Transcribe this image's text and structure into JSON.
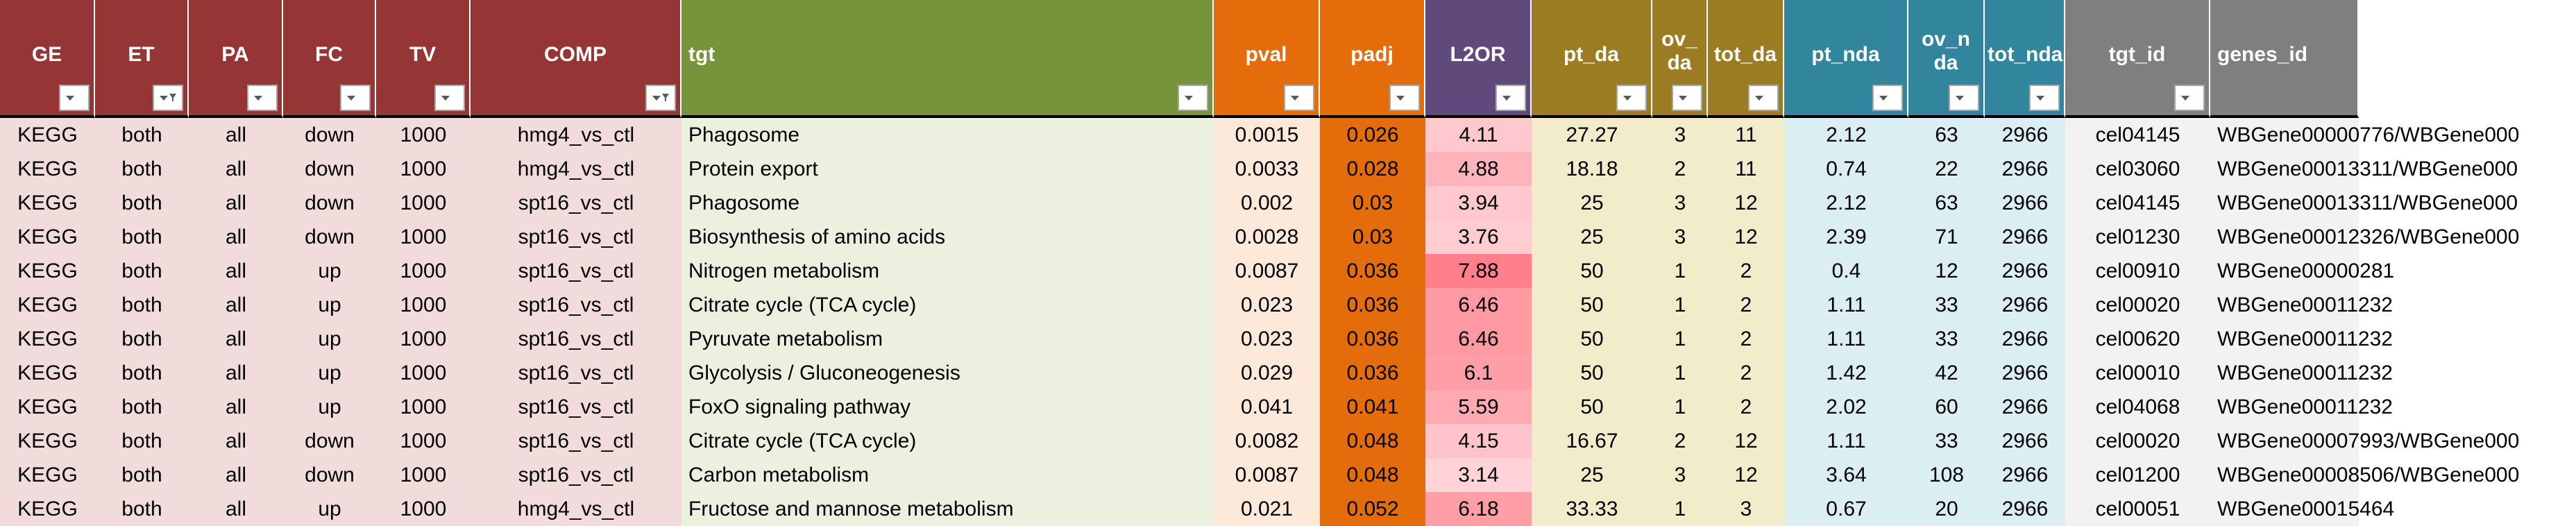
{
  "sheet": {
    "columns": [
      {
        "key": "ge",
        "label": "GE",
        "header_color": "#963535",
        "cell_color": "#f2dcdb",
        "align": "center",
        "filter_active": false
      },
      {
        "key": "et",
        "label": "ET",
        "header_color": "#963535",
        "cell_color": "#f2dcdb",
        "align": "center",
        "filter_active": true
      },
      {
        "key": "pa",
        "label": "PA",
        "header_color": "#963535",
        "cell_color": "#f2dcdb",
        "align": "center",
        "filter_active": false
      },
      {
        "key": "fc",
        "label": "FC",
        "header_color": "#963535",
        "cell_color": "#f2dcdb",
        "align": "center",
        "filter_active": false
      },
      {
        "key": "tv",
        "label": "TV",
        "header_color": "#963535",
        "cell_color": "#f2dcdb",
        "align": "center",
        "filter_active": false
      },
      {
        "key": "comp",
        "label": "COMP",
        "header_color": "#963535",
        "cell_color": "#f2dcdb",
        "align": "center",
        "filter_active": true
      },
      {
        "key": "tgt",
        "label": "tgt",
        "header_color": "#77933c",
        "cell_color": "#ebf1de",
        "align": "left",
        "filter_active": false
      },
      {
        "key": "pval",
        "label": "pval",
        "header_color": "#e46c0a",
        "cell_color": "#fde9d9",
        "align": "center",
        "filter_active": false
      },
      {
        "key": "padj",
        "label": "padj",
        "header_color": "#e46c0a",
        "cell_color": "#e46c0a",
        "align": "center",
        "filter_active": false
      },
      {
        "key": "l2or",
        "label": "L2OR",
        "header_color": "#604a7b",
        "cell_color": "#ffc7ce",
        "align": "center",
        "filter_active": false
      },
      {
        "key": "pt_da",
        "label": "pt_da",
        "header_color": "#9c7c22",
        "cell_color": "#f3eccb",
        "align": "center",
        "filter_active": false
      },
      {
        "key": "ov_da",
        "label": "ov_da",
        "header_color": "#9c7c22",
        "cell_color": "#f3eccb",
        "align": "center",
        "filter_active": false,
        "wrap": true
      },
      {
        "key": "tot_da",
        "label": "tot_da",
        "header_color": "#9c7c22",
        "cell_color": "#f3eccb",
        "align": "center",
        "filter_active": false
      },
      {
        "key": "pt_nda",
        "label": "pt_nda",
        "header_color": "#31859c",
        "cell_color": "#daeef3",
        "align": "center",
        "filter_active": false
      },
      {
        "key": "ov_nda",
        "label": "ov_nda",
        "header_color": "#31859c",
        "cell_color": "#daeef3",
        "align": "center",
        "filter_active": false,
        "wrap": true
      },
      {
        "key": "tot_nda",
        "label": "tot_nda",
        "header_color": "#31859c",
        "cell_color": "#daeef3",
        "align": "center",
        "filter_active": false
      },
      {
        "key": "tgt_id",
        "label": "tgt_id",
        "header_color": "#7f7f7f",
        "cell_color": "#f2f2f2",
        "align": "center",
        "filter_active": false
      },
      {
        "key": "genes_id",
        "label": "genes_id",
        "header_color": "#7f7f7f",
        "cell_color": "#f2f2f2",
        "align": "left",
        "filter_active": false,
        "no_filter": true
      }
    ],
    "rows": [
      [
        "KEGG",
        "both",
        "all",
        "down",
        "1000",
        "hmg4_vs_ctl",
        "Phagosome",
        "0.0015",
        "0.026",
        "4.11",
        "27.27",
        "3",
        "11",
        "2.12",
        "63",
        "2966",
        "cel04145",
        "WBGene00000776/WBGene000"
      ],
      [
        "KEGG",
        "both",
        "all",
        "down",
        "1000",
        "hmg4_vs_ctl",
        "Protein export",
        "0.0033",
        "0.028",
        "4.88",
        "18.18",
        "2",
        "11",
        "0.74",
        "22",
        "2966",
        "cel03060",
        "WBGene00013311/WBGene000"
      ],
      [
        "KEGG",
        "both",
        "all",
        "down",
        "1000",
        "spt16_vs_ctl",
        "Phagosome",
        "0.002",
        "0.03",
        "3.94",
        "25",
        "3",
        "12",
        "2.12",
        "63",
        "2966",
        "cel04145",
        "WBGene00013311/WBGene000"
      ],
      [
        "KEGG",
        "both",
        "all",
        "down",
        "1000",
        "spt16_vs_ctl",
        "Biosynthesis of amino acids",
        "0.0028",
        "0.03",
        "3.76",
        "25",
        "3",
        "12",
        "2.39",
        "71",
        "2966",
        "cel01230",
        "WBGene00012326/WBGene000"
      ],
      [
        "KEGG",
        "both",
        "all",
        "up",
        "1000",
        "spt16_vs_ctl",
        "Nitrogen metabolism",
        "0.0087",
        "0.036",
        "7.88",
        "50",
        "1",
        "2",
        "0.4",
        "12",
        "2966",
        "cel00910",
        "WBGene00000281"
      ],
      [
        "KEGG",
        "both",
        "all",
        "up",
        "1000",
        "spt16_vs_ctl",
        "Citrate cycle (TCA cycle)",
        "0.023",
        "0.036",
        "6.46",
        "50",
        "1",
        "2",
        "1.11",
        "33",
        "2966",
        "cel00020",
        "WBGene00011232"
      ],
      [
        "KEGG",
        "both",
        "all",
        "up",
        "1000",
        "spt16_vs_ctl",
        "Pyruvate metabolism",
        "0.023",
        "0.036",
        "6.46",
        "50",
        "1",
        "2",
        "1.11",
        "33",
        "2966",
        "cel00620",
        "WBGene00011232"
      ],
      [
        "KEGG",
        "both",
        "all",
        "up",
        "1000",
        "spt16_vs_ctl",
        "Glycolysis / Gluconeogenesis",
        "0.029",
        "0.036",
        "6.1",
        "50",
        "1",
        "2",
        "1.42",
        "42",
        "2966",
        "cel00010",
        "WBGene00011232"
      ],
      [
        "KEGG",
        "both",
        "all",
        "up",
        "1000",
        "spt16_vs_ctl",
        "FoxO signaling pathway",
        "0.041",
        "0.041",
        "5.59",
        "50",
        "1",
        "2",
        "2.02",
        "60",
        "2966",
        "cel04068",
        "WBGene00011232"
      ],
      [
        "KEGG",
        "both",
        "all",
        "down",
        "1000",
        "spt16_vs_ctl",
        "Citrate cycle (TCA cycle)",
        "0.0082",
        "0.048",
        "4.15",
        "16.67",
        "2",
        "12",
        "1.11",
        "33",
        "2966",
        "cel00020",
        "WBGene00007993/WBGene000"
      ],
      [
        "KEGG",
        "both",
        "all",
        "down",
        "1000",
        "spt16_vs_ctl",
        "Carbon metabolism",
        "0.0087",
        "0.048",
        "3.14",
        "25",
        "3",
        "12",
        "3.64",
        "108",
        "2966",
        "cel01200",
        "WBGene00008506/WBGene000"
      ],
      [
        "KEGG",
        "both",
        "all",
        "up",
        "1000",
        "hmg4_vs_ctl",
        "Fructose and mannose metabolism",
        "0.021",
        "0.052",
        "6.18",
        "33.33",
        "1",
        "3",
        "0.67",
        "20",
        "2966",
        "cel00051",
        "WBGene00015464"
      ]
    ],
    "cell_fill_overrides": {
      "l2or": [
        "#ffc7ce",
        "#ffb3bb",
        "#ffc7ce",
        "#ffccd2",
        "#ff7f8a",
        "#ff9aa3",
        "#ff9aa3",
        "#ff9ea7",
        "#ffaab2",
        "#ffc4cb",
        "#ffd3d8",
        "#ff9ea7"
      ]
    }
  }
}
